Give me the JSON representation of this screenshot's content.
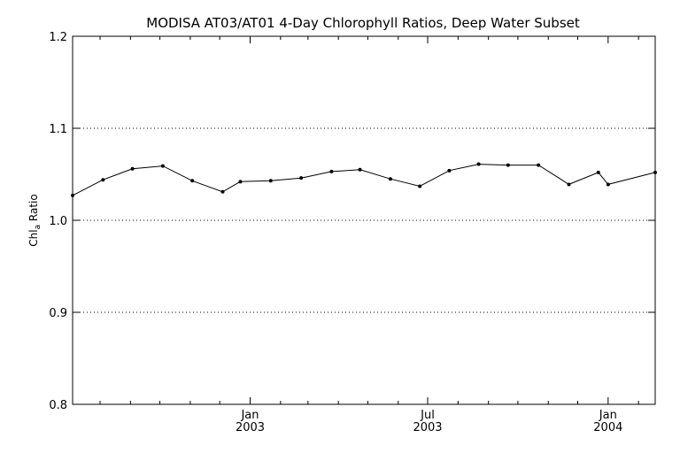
{
  "chart_data": {
    "type": "line",
    "title": "MODISA AT03/AT01 4-Day Chlorophyll Ratios, Deep Water Subset",
    "ylabel_main": "Chl",
    "ylabel_sub": "a",
    "ylabel_rest": " Ratio",
    "xlabel": "",
    "ylim": [
      0.8,
      1.2
    ],
    "yticks": [
      "0.8",
      "0.9",
      "1.0",
      "1.1",
      "1.2"
    ],
    "ytick_values": [
      0.8,
      0.9,
      1.0,
      1.1,
      1.2
    ],
    "xlim": [
      "2002-07-04",
      "2004-02-18"
    ],
    "xtick_labels": [
      {
        "month": "Jan",
        "year": "2003",
        "date": "2003-01-01"
      },
      {
        "month": "Jul",
        "year": "2003",
        "date": "2003-07-01"
      },
      {
        "month": "Jan",
        "year": "2004",
        "date": "2004-01-01"
      }
    ],
    "minor_tick_dates": [
      "2002-08-01",
      "2002-09-01",
      "2002-10-01",
      "2002-11-01",
      "2002-12-01",
      "2003-02-01",
      "2003-03-01",
      "2003-04-01",
      "2003-05-01",
      "2003-06-01",
      "2003-08-01",
      "2003-09-01",
      "2003-10-01",
      "2003-11-01",
      "2003-12-01",
      "2004-02-01"
    ],
    "grid_y": [
      0.9,
      1.0,
      1.1
    ],
    "grid_style": "dotted",
    "series": [
      {
        "color": "#000000",
        "x": [
          "2002-07-04",
          "2002-08-04",
          "2002-09-03",
          "2002-10-04",
          "2002-11-03",
          "2002-12-04",
          "2002-12-22",
          "2003-01-22",
          "2003-02-22",
          "2003-03-25",
          "2003-04-23",
          "2003-05-24",
          "2003-06-23",
          "2003-07-23",
          "2003-08-22",
          "2003-09-21",
          "2003-10-22",
          "2003-11-22",
          "2003-12-22",
          "2004-01-01",
          "2004-02-18"
        ],
        "y": [
          1.027,
          1.044,
          1.056,
          1.059,
          1.043,
          1.031,
          1.042,
          1.043,
          1.046,
          1.053,
          1.055,
          1.045,
          1.037,
          1.054,
          1.061,
          1.06,
          1.06,
          1.039,
          1.052,
          1.039,
          1.052
        ]
      }
    ]
  }
}
